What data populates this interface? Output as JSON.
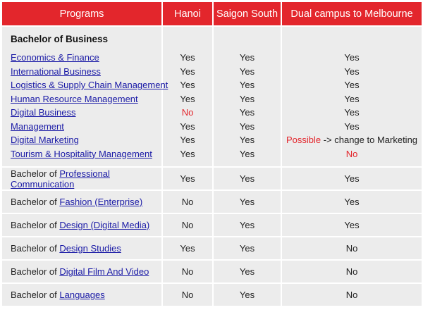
{
  "header": {
    "programs": "Programs",
    "hanoi": "Hanoi",
    "saigon": "Saigon South",
    "dual": "Dual campus to Melbourne"
  },
  "business": {
    "title": "Bachelor of Business",
    "items": [
      {
        "name": "Economics & Finance",
        "hanoi": "Yes",
        "saigon": "Yes",
        "dual": "Yes"
      },
      {
        "name": "International Business",
        "hanoi": "Yes",
        "saigon": "Yes",
        "dual": "Yes"
      },
      {
        "name": "Logistics & Supply Chain Management",
        "hanoi": "Yes",
        "saigon": "Yes",
        "dual": "Yes"
      },
      {
        "name": "Human Resource Management",
        "hanoi": "Yes",
        "saigon": "Yes",
        "dual": "Yes"
      },
      {
        "name": "Digital Business",
        "hanoi": "No",
        "saigon": "Yes",
        "dual": "Yes"
      },
      {
        "name": "Management",
        "hanoi": "Yes",
        "saigon": "Yes",
        "dual": "Yes"
      },
      {
        "name": "Digital Marketing",
        "hanoi": "Yes",
        "saigon": "Yes",
        "dual_possible": "Possible",
        "dual_rest": " -> change to Marketing"
      },
      {
        "name": "Tourism & Hospitality Management",
        "hanoi": "Yes",
        "saigon": "Yes",
        "dual": "No"
      }
    ]
  },
  "programs": [
    {
      "prefix": "Bachelor of ",
      "link": "Professional Communication",
      "hanoi": "Yes",
      "saigon": "Yes",
      "dual": "Yes"
    },
    {
      "prefix": "Bachelor of ",
      "link": "Fashion (Enterprise)",
      "hanoi": "No",
      "saigon": "Yes",
      "dual": "Yes"
    },
    {
      "prefix": "Bachelor of ",
      "link": "Design (Digital Media)",
      "hanoi": "No",
      "saigon": "Yes",
      "dual": "Yes"
    },
    {
      "prefix": "Bachelor of ",
      "link": "Design Studies",
      "hanoi": "Yes",
      "saigon": "Yes",
      "dual": "No"
    },
    {
      "prefix": "Bachelor of ",
      "link": "Digital Film And Video",
      "hanoi": "No",
      "saigon": "Yes",
      "dual": "No"
    },
    {
      "prefix": "Bachelor of ",
      "link": "Languages",
      "hanoi": "No",
      "saigon": "Yes",
      "dual": "No"
    }
  ],
  "colors": {
    "header_bg": "#e3262c",
    "cell_bg": "#ececec",
    "link": "#1a1aa6",
    "no": "#e3262c"
  }
}
